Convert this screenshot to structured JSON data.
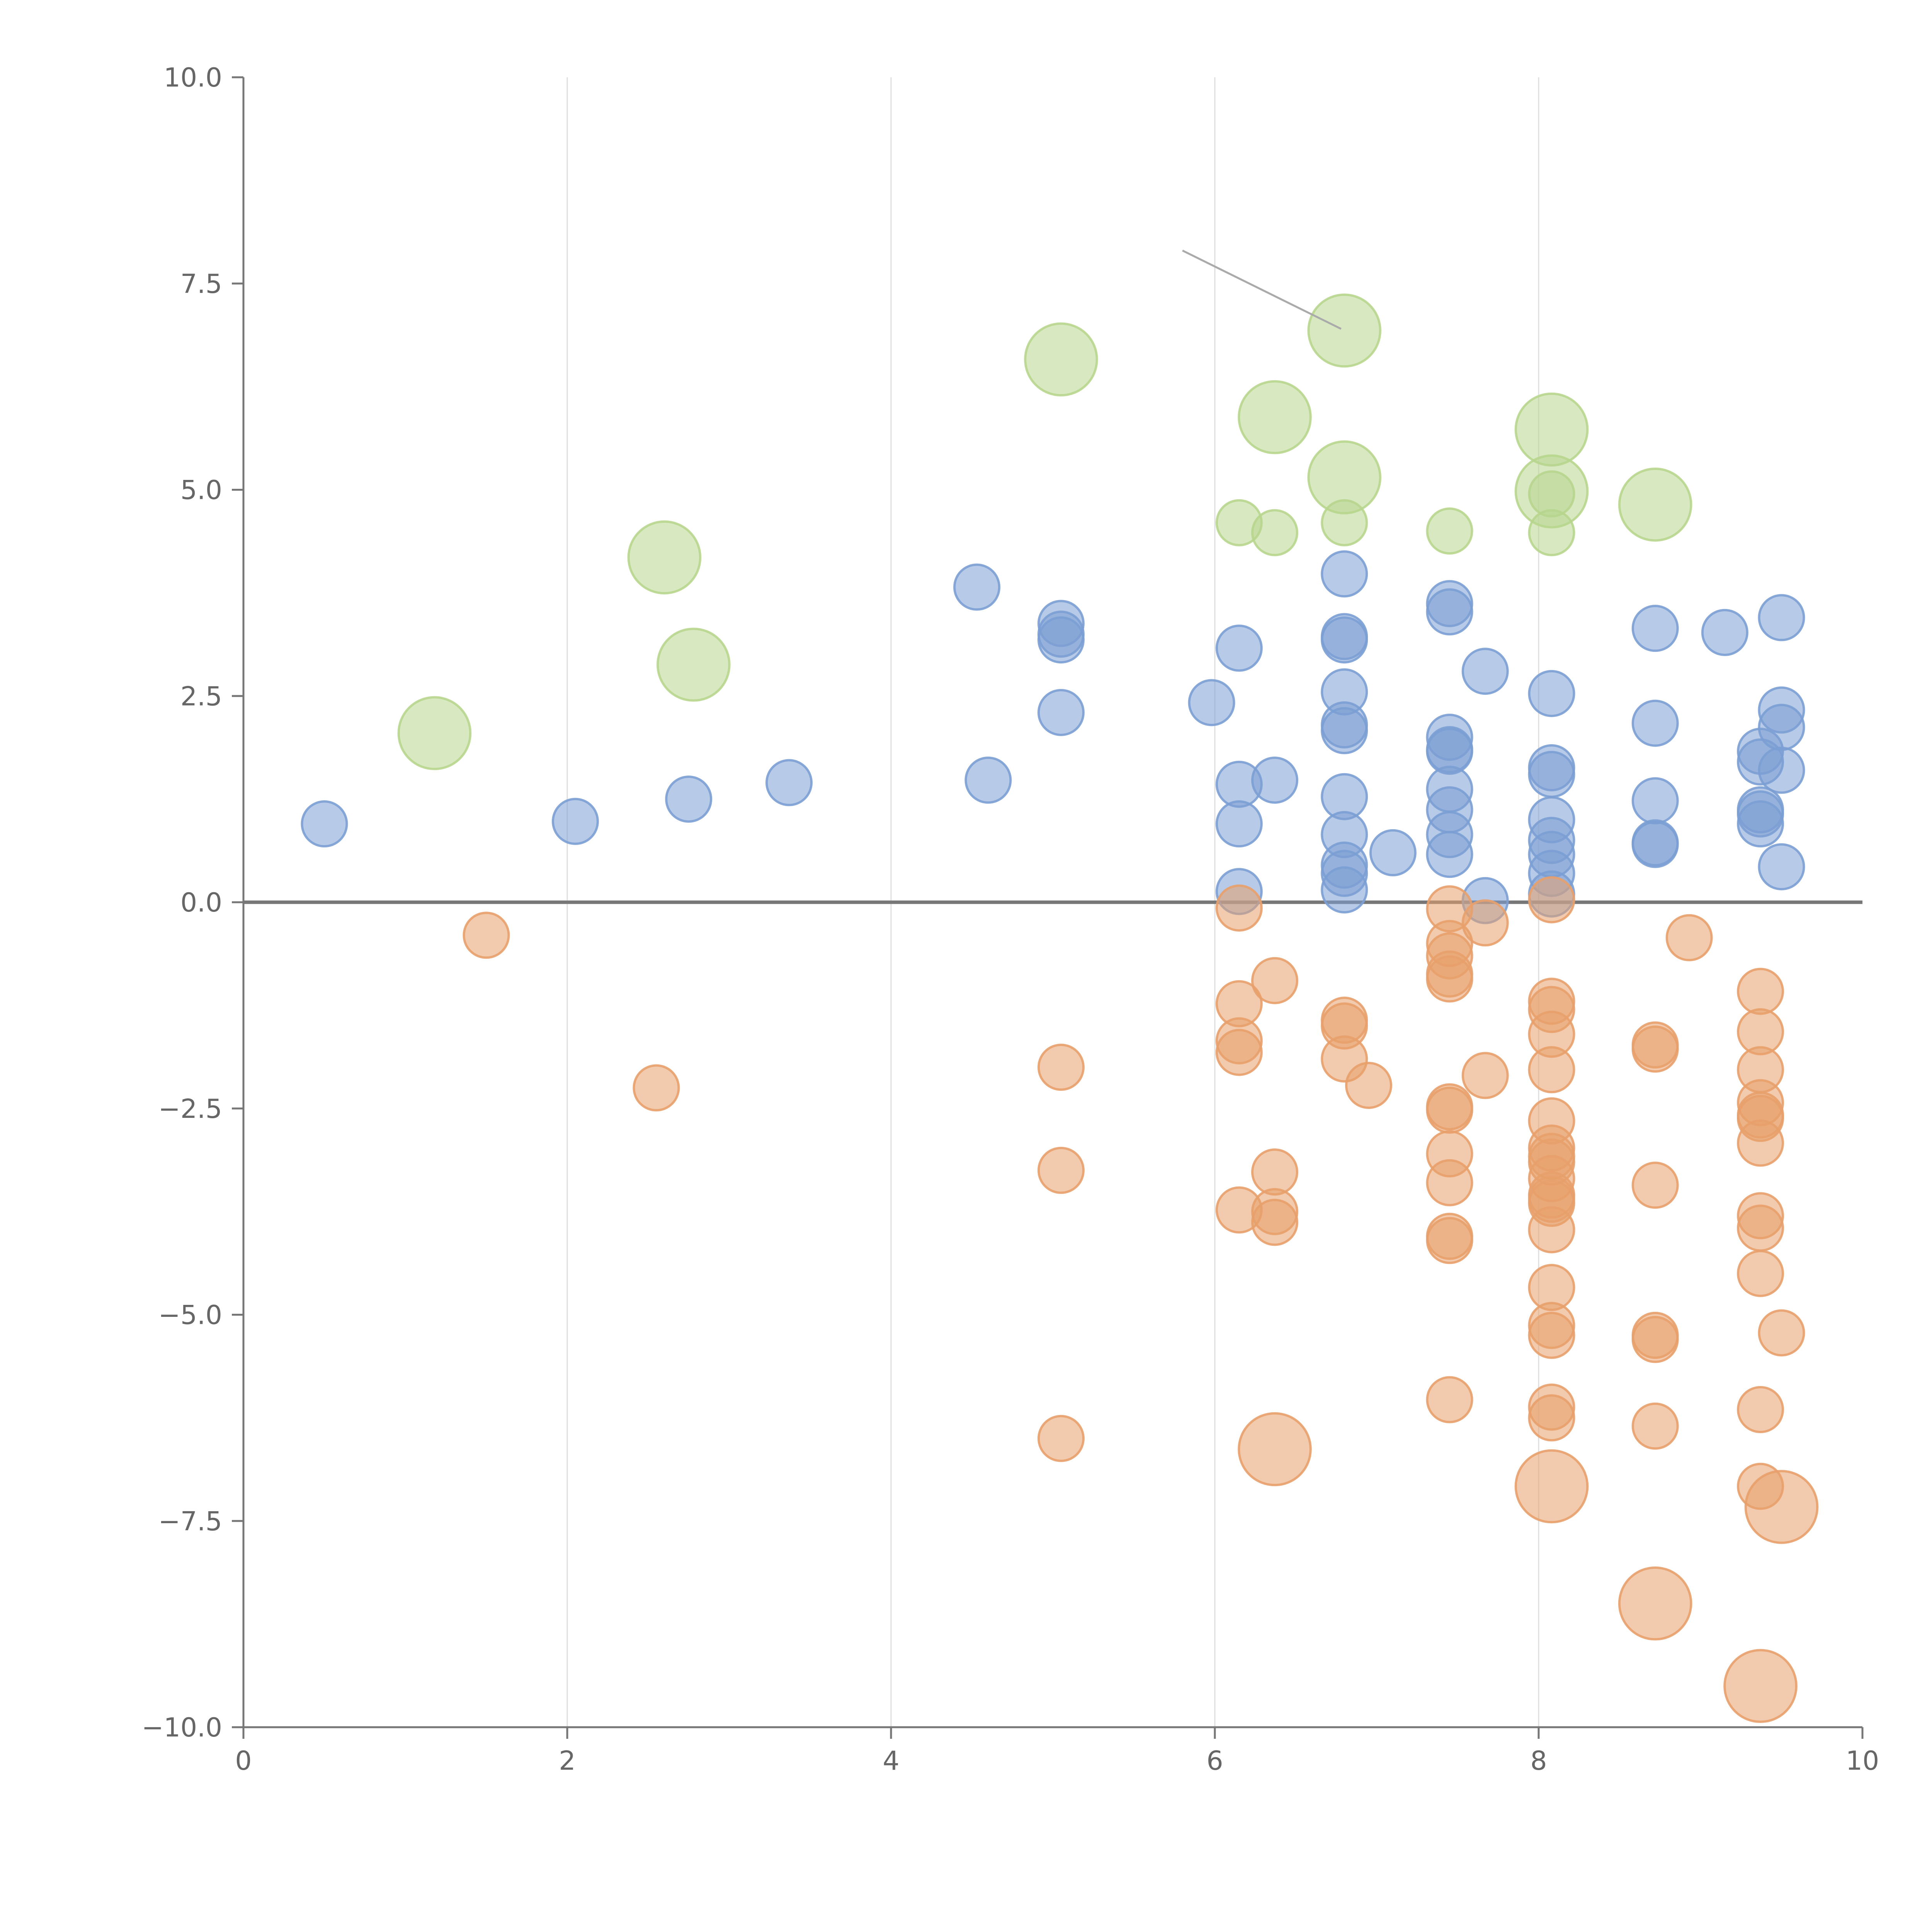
{
  "chart_data": {
    "type": "scatter",
    "variant": "bubble",
    "title": "",
    "xlabel": "",
    "ylabel": "",
    "xlim": [
      0,
      10
    ],
    "ylim": [
      -10,
      10
    ],
    "x_ticks": [
      0,
      2,
      4,
      6,
      8,
      10
    ],
    "x_tick_labels": [
      "0",
      "2",
      "4",
      "6",
      "8",
      "10"
    ],
    "y_ticks": [
      10,
      7.5,
      5,
      2.5,
      0,
      -2.5,
      -5,
      -7.5,
      -10
    ],
    "y_tick_labels": [
      "10.0",
      "7.5",
      "5.0",
      "2.5",
      "0.0",
      "−2.5",
      "−5.0",
      "−7.5",
      "−10.0"
    ],
    "vertical_grid": true,
    "zero_line": true,
    "legend": "none",
    "series": [
      {
        "name": "blue",
        "color": "#7b9fd4",
        "size": 1,
        "points": [
          [
            0.5,
            0.95
          ],
          [
            2.05,
            0.98
          ],
          [
            2.75,
            1.25
          ],
          [
            3.37,
            1.45
          ],
          [
            4.53,
            3.82
          ],
          [
            4.6,
            1.48
          ],
          [
            5.05,
            3.38
          ],
          [
            5.05,
            3.25
          ],
          [
            5.05,
            3.18
          ],
          [
            5.05,
            2.3
          ],
          [
            5.98,
            2.42
          ],
          [
            6.15,
            3.08
          ],
          [
            6.15,
            1.43
          ],
          [
            6.15,
            0.95
          ],
          [
            6.15,
            0.13
          ],
          [
            6.37,
            1.48
          ],
          [
            6.8,
            3.98
          ],
          [
            6.8,
            3.22
          ],
          [
            6.8,
            3.18
          ],
          [
            6.8,
            2.55
          ],
          [
            6.8,
            2.15
          ],
          [
            6.8,
            2.08
          ],
          [
            6.8,
            1.28
          ],
          [
            6.8,
            0.82
          ],
          [
            6.8,
            0.45
          ],
          [
            6.8,
            0.35
          ],
          [
            6.8,
            0.15
          ],
          [
            7.1,
            0.6
          ],
          [
            7.45,
            3.62
          ],
          [
            7.45,
            3.52
          ],
          [
            7.45,
            2.0
          ],
          [
            7.45,
            1.85
          ],
          [
            7.45,
            1.83
          ],
          [
            7.45,
            1.37
          ],
          [
            7.45,
            1.12
          ],
          [
            7.45,
            0.82
          ],
          [
            7.45,
            0.58
          ],
          [
            7.67,
            2.8
          ],
          [
            7.67,
            0.02
          ],
          [
            8.08,
            2.53
          ],
          [
            8.08,
            1.63
          ],
          [
            8.08,
            1.55
          ],
          [
            8.08,
            1.0
          ],
          [
            8.08,
            0.75
          ],
          [
            8.08,
            0.58
          ],
          [
            8.08,
            0.35
          ],
          [
            8.08,
            0.1
          ],
          [
            8.72,
            3.32
          ],
          [
            8.72,
            2.17
          ],
          [
            8.72,
            1.23
          ],
          [
            8.72,
            0.72
          ],
          [
            8.72,
            0.7
          ],
          [
            9.15,
            3.27
          ],
          [
            9.37,
            1.83
          ],
          [
            9.37,
            1.7
          ],
          [
            9.37,
            1.12
          ],
          [
            9.37,
            1.07
          ],
          [
            9.37,
            0.95
          ],
          [
            9.5,
            3.45
          ],
          [
            9.5,
            2.33
          ],
          [
            9.5,
            2.12
          ],
          [
            9.5,
            1.6
          ],
          [
            9.5,
            0.43
          ]
        ]
      },
      {
        "name": "orange",
        "color": "#e8a06c",
        "size": 1,
        "points": [
          [
            1.5,
            -0.4
          ],
          [
            2.55,
            -2.25
          ],
          [
            5.05,
            -2.0
          ],
          [
            5.05,
            -3.25
          ],
          [
            5.05,
            -6.5
          ],
          [
            6.15,
            -0.07
          ],
          [
            6.15,
            -1.23
          ],
          [
            6.15,
            -1.68
          ],
          [
            6.15,
            -1.82
          ],
          [
            6.15,
            -3.73
          ],
          [
            6.37,
            -0.95
          ],
          [
            6.37,
            -3.27
          ],
          [
            6.37,
            -3.75
          ],
          [
            6.37,
            -3.88
          ],
          [
            6.8,
            -1.43
          ],
          [
            6.8,
            -1.5
          ],
          [
            6.8,
            -1.9
          ],
          [
            6.95,
            -2.22
          ],
          [
            7.45,
            -0.08
          ],
          [
            7.45,
            -0.5
          ],
          [
            7.45,
            -0.65
          ],
          [
            7.45,
            -0.87
          ],
          [
            7.45,
            -0.93
          ],
          [
            7.45,
            -2.48
          ],
          [
            7.45,
            -2.52
          ],
          [
            7.45,
            -3.05
          ],
          [
            7.45,
            -3.4
          ],
          [
            7.45,
            -4.05
          ],
          [
            7.45,
            -4.1
          ],
          [
            7.45,
            -6.03
          ],
          [
            7.67,
            -0.25
          ],
          [
            7.67,
            -2.1
          ],
          [
            8.08,
            0.03
          ],
          [
            8.08,
            -1.2
          ],
          [
            8.08,
            -1.3
          ],
          [
            8.08,
            -1.6
          ],
          [
            8.08,
            -2.03
          ],
          [
            8.08,
            -2.65
          ],
          [
            8.08,
            -2.98
          ],
          [
            8.08,
            -3.08
          ],
          [
            8.08,
            -3.15
          ],
          [
            8.08,
            -3.35
          ],
          [
            8.08,
            -3.55
          ],
          [
            8.08,
            -3.6
          ],
          [
            8.08,
            -3.65
          ],
          [
            8.08,
            -3.97
          ],
          [
            8.08,
            -4.67
          ],
          [
            8.08,
            -5.13
          ],
          [
            8.08,
            -5.25
          ],
          [
            8.08,
            -6.12
          ],
          [
            8.08,
            -6.25
          ],
          [
            8.72,
            -1.73
          ],
          [
            8.72,
            -1.78
          ],
          [
            8.72,
            -3.43
          ],
          [
            8.72,
            -5.25
          ],
          [
            8.72,
            -5.3
          ],
          [
            8.72,
            -6.35
          ],
          [
            8.93,
            -0.43
          ],
          [
            9.37,
            -1.08
          ],
          [
            9.37,
            -1.57
          ],
          [
            9.37,
            -2.03
          ],
          [
            9.37,
            -2.43
          ],
          [
            9.37,
            -2.58
          ],
          [
            9.37,
            -2.62
          ],
          [
            9.37,
            -2.92
          ],
          [
            9.37,
            -3.8
          ],
          [
            9.37,
            -3.95
          ],
          [
            9.37,
            -4.5
          ],
          [
            9.37,
            -6.15
          ],
          [
            9.37,
            -7.08
          ],
          [
            9.5,
            -5.22
          ]
        ]
      },
      {
        "name": "orange-large",
        "color": "#e8a06c",
        "size": 1.6,
        "points": [
          [
            6.37,
            -6.63
          ],
          [
            8.08,
            -7.08
          ],
          [
            9.5,
            -7.33
          ],
          [
            8.72,
            -8.5
          ],
          [
            9.37,
            -9.5
          ]
        ]
      },
      {
        "name": "green-small",
        "color": "#b8d68e",
        "size": 1,
        "points": [
          [
            6.15,
            4.6
          ],
          [
            6.37,
            4.48
          ],
          [
            6.8,
            4.6
          ],
          [
            7.45,
            4.5
          ],
          [
            8.08,
            4.48
          ],
          [
            8.08,
            4.95
          ]
        ]
      },
      {
        "name": "green-large",
        "color": "#b8d68e",
        "size": 1.6,
        "points": [
          [
            1.18,
            2.05
          ],
          [
            2.6,
            4.18
          ],
          [
            2.78,
            2.88
          ],
          [
            5.05,
            6.58
          ],
          [
            6.37,
            5.88
          ],
          [
            6.8,
            6.93
          ],
          [
            6.8,
            5.15
          ],
          [
            8.08,
            5.73
          ],
          [
            8.08,
            4.98
          ],
          [
            8.72,
            4.82
          ]
        ]
      }
    ],
    "annotations": [
      {
        "type": "leader-line",
        "from": [
          5.8,
          7.9
        ],
        "to": [
          6.78,
          6.95
        ]
      }
    ]
  }
}
